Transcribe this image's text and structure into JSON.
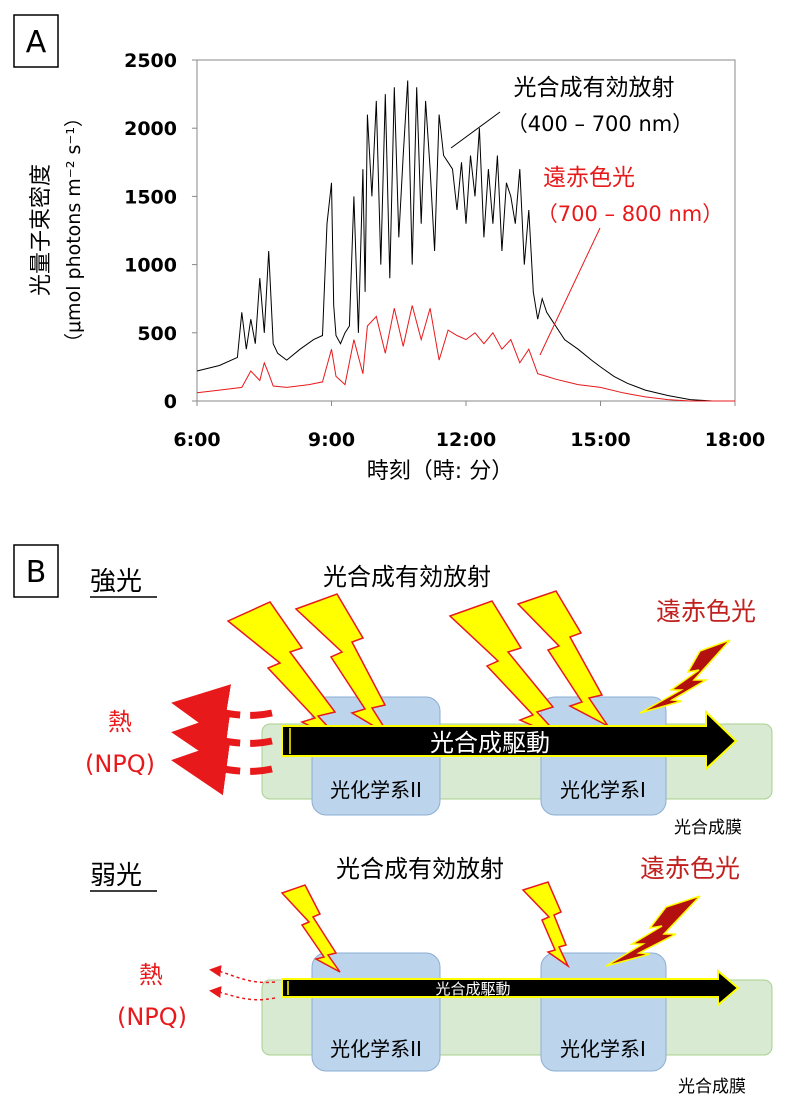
{
  "colors": {
    "par": "#000000",
    "far_red": "#e8191b",
    "thylakoid": "#d9ead3",
    "photosystem": "#bcd4ec",
    "bolt_yellow": "#ffff00",
    "bolt_darkred": "#b3110f"
  },
  "panel_a": {
    "label": "A",
    "ylabel_line1": "光量子束密度",
    "ylabel_line2": "（μmol photons m⁻² s⁻¹）",
    "xlabel": "時刻（時: 分）",
    "annotation_par_title": "光合成有効放射",
    "annotation_par_range": "（400 – 700 nm）",
    "annotation_fr_title": "遠赤色光",
    "annotation_fr_range": "（700 – 800 nm）"
  },
  "chart_data": {
    "type": "line",
    "xlabel": "時刻（時: 分）",
    "ylabel": "光量子束密度（μmol photons m⁻² s⁻¹）",
    "x_ticks": [
      "6:00",
      "9:00",
      "12:00",
      "15:00",
      "18:00"
    ],
    "y_ticks": [
      "0",
      "500",
      "1000",
      "1500",
      "2000",
      "2500"
    ],
    "xlim": [
      6,
      18
    ],
    "ylim": [
      0,
      2500
    ],
    "grid": false,
    "series": [
      {
        "name": "光合成有効放射（400 – 700 nm）",
        "color": "#000000",
        "x": [
          6.0,
          6.5,
          6.9,
          7.0,
          7.1,
          7.2,
          7.3,
          7.4,
          7.5,
          7.6,
          7.7,
          7.8,
          8.0,
          8.3,
          8.6,
          8.8,
          8.9,
          9.0,
          9.05,
          9.1,
          9.2,
          9.3,
          9.4,
          9.5,
          9.6,
          9.7,
          9.75,
          9.8,
          9.9,
          10.0,
          10.1,
          10.2,
          10.3,
          10.4,
          10.5,
          10.6,
          10.7,
          10.8,
          10.9,
          11.0,
          11.1,
          11.2,
          11.3,
          11.4,
          11.5,
          11.6,
          11.7,
          11.8,
          11.9,
          12.0,
          12.1,
          12.2,
          12.3,
          12.4,
          12.5,
          12.6,
          12.7,
          12.8,
          12.9,
          13.0,
          13.1,
          13.2,
          13.3,
          13.4,
          13.5,
          13.6,
          13.7,
          13.8,
          13.9,
          14.0,
          14.2,
          14.5,
          14.8,
          15.0,
          15.3,
          15.6,
          16.0,
          16.5,
          17.0,
          17.5,
          18.0
        ],
        "values": [
          220,
          260,
          320,
          650,
          380,
          600,
          420,
          900,
          500,
          1100,
          420,
          350,
          300,
          380,
          450,
          480,
          1300,
          1600,
          700,
          480,
          420,
          500,
          550,
          1500,
          500,
          1700,
          800,
          2100,
          1500,
          2200,
          1000,
          2250,
          900,
          2300,
          1200,
          1800,
          2350,
          1000,
          2300,
          1300,
          2200,
          1700,
          1100,
          2100,
          1800,
          1750,
          1700,
          1400,
          1750,
          1300,
          1800,
          1500,
          2000,
          1200,
          1700,
          1300,
          1800,
          1100,
          1600,
          1500,
          1300,
          1700,
          1000,
          1400,
          800,
          600,
          750,
          650,
          600,
          550,
          450,
          380,
          300,
          250,
          180,
          130,
          80,
          40,
          10,
          0,
          0
        ]
      },
      {
        "name": "遠赤色光（700 – 800 nm）",
        "color": "#e8191b",
        "x": [
          6.0,
          6.5,
          7.0,
          7.2,
          7.4,
          7.5,
          7.6,
          7.7,
          8.0,
          8.5,
          8.8,
          9.0,
          9.1,
          9.3,
          9.5,
          9.7,
          9.8,
          10.0,
          10.2,
          10.4,
          10.6,
          10.8,
          11.0,
          11.2,
          11.4,
          11.6,
          11.8,
          12.0,
          12.2,
          12.4,
          12.6,
          12.8,
          13.0,
          13.2,
          13.4,
          13.6,
          13.8,
          14.0,
          14.5,
          15.0,
          15.5,
          16.0,
          16.5,
          17.0,
          17.5,
          18.0
        ],
        "values": [
          60,
          80,
          100,
          220,
          150,
          280,
          200,
          110,
          100,
          120,
          140,
          380,
          180,
          120,
          450,
          200,
          550,
          620,
          350,
          680,
          400,
          700,
          450,
          680,
          300,
          520,
          480,
          450,
          500,
          420,
          500,
          380,
          450,
          280,
          380,
          200,
          180,
          160,
          120,
          100,
          60,
          30,
          10,
          0,
          0,
          0
        ]
      }
    ]
  },
  "panel_b": {
    "label": "B",
    "strong": {
      "heading": "強光",
      "par_label": "光合成有効放射",
      "fr_label": "遠赤色光",
      "heat_line1": "熱",
      "heat_line2": "(NPQ)",
      "arrow_label": "光合成駆動",
      "psii_label": "光化学系II",
      "psi_label": "光化学系I",
      "membrane_label": "光合成膜"
    },
    "weak": {
      "heading": "弱光",
      "par_label": "光合成有効放射",
      "fr_label": "遠赤色光",
      "heat_line1": "熱",
      "heat_line2": "(NPQ)",
      "arrow_label": "光合成駆動",
      "psii_label": "光化学系II",
      "psi_label": "光化学系I",
      "membrane_label": "光合成膜"
    }
  }
}
